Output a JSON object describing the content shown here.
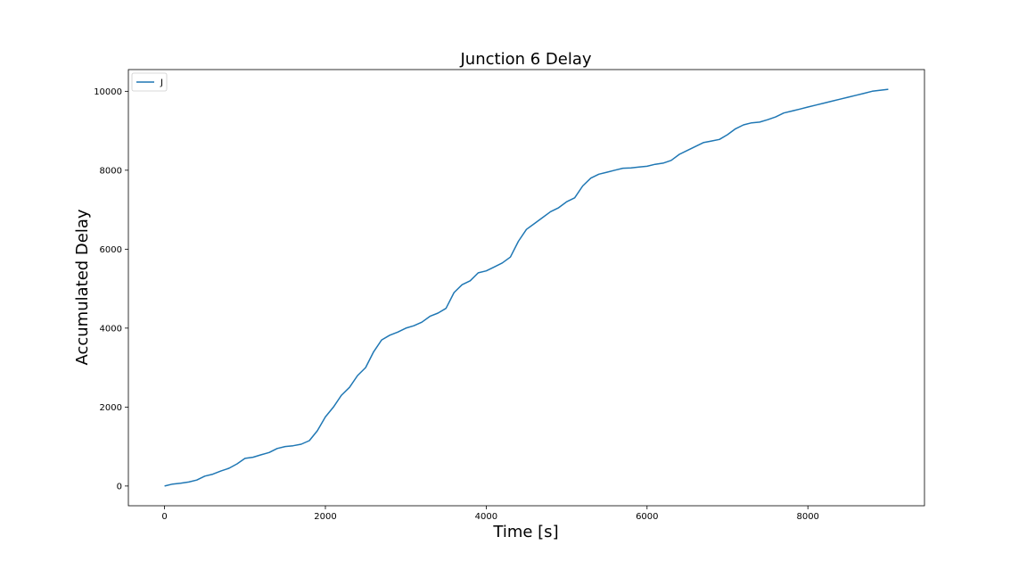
{
  "chart_data": {
    "type": "line",
    "title": "Junction 6 Delay",
    "xlabel": "Time [s]",
    "ylabel": "Accumulated Delay",
    "xlim": [
      -450,
      9450
    ],
    "ylim": [
      -500,
      10550
    ],
    "xticks": [
      0,
      2000,
      4000,
      6000,
      8000
    ],
    "yticks": [
      0,
      2000,
      4000,
      6000,
      8000,
      10000
    ],
    "grid": false,
    "legend_position": "upper left",
    "series": [
      {
        "name": "J",
        "color": "#1f77b4",
        "x": [
          0,
          100,
          200,
          300,
          400,
          500,
          600,
          700,
          800,
          900,
          1000,
          1100,
          1200,
          1300,
          1400,
          1500,
          1600,
          1700,
          1800,
          1900,
          2000,
          2100,
          2200,
          2300,
          2400,
          2500,
          2600,
          2700,
          2800,
          2900,
          3000,
          3100,
          3200,
          3300,
          3400,
          3500,
          3600,
          3700,
          3800,
          3900,
          4000,
          4100,
          4200,
          4300,
          4400,
          4500,
          4600,
          4700,
          4800,
          4900,
          5000,
          5100,
          5200,
          5300,
          5400,
          5500,
          5600,
          5700,
          5800,
          5900,
          6000,
          6100,
          6200,
          6300,
          6400,
          6500,
          6600,
          6700,
          6800,
          6900,
          7000,
          7100,
          7200,
          7300,
          7400,
          7500,
          7600,
          7700,
          7800,
          7900,
          8000,
          8100,
          8200,
          8300,
          8400,
          8500,
          8600,
          8700,
          8800,
          9000
        ],
        "y": [
          0,
          50,
          70,
          100,
          150,
          250,
          300,
          380,
          450,
          560,
          700,
          730,
          790,
          850,
          950,
          1000,
          1020,
          1060,
          1150,
          1400,
          1750,
          2000,
          2300,
          2500,
          2800,
          3000,
          3400,
          3700,
          3820,
          3900,
          4000,
          4060,
          4150,
          4300,
          4380,
          4500,
          4900,
          5100,
          5200,
          5400,
          5450,
          5550,
          5650,
          5800,
          6200,
          6500,
          6650,
          6800,
          6950,
          7050,
          7200,
          7300,
          7600,
          7800,
          7900,
          7950,
          8000,
          8050,
          8060,
          8080,
          8100,
          8150,
          8180,
          8250,
          8400,
          8500,
          8600,
          8700,
          8740,
          8780,
          8900,
          9050,
          9150,
          9200,
          9220,
          9280,
          9350,
          9450,
          9500,
          9550,
          9600,
          9650,
          9700,
          9750,
          9800,
          9850,
          9900,
          9950,
          10000,
          10050
        ]
      }
    ]
  }
}
